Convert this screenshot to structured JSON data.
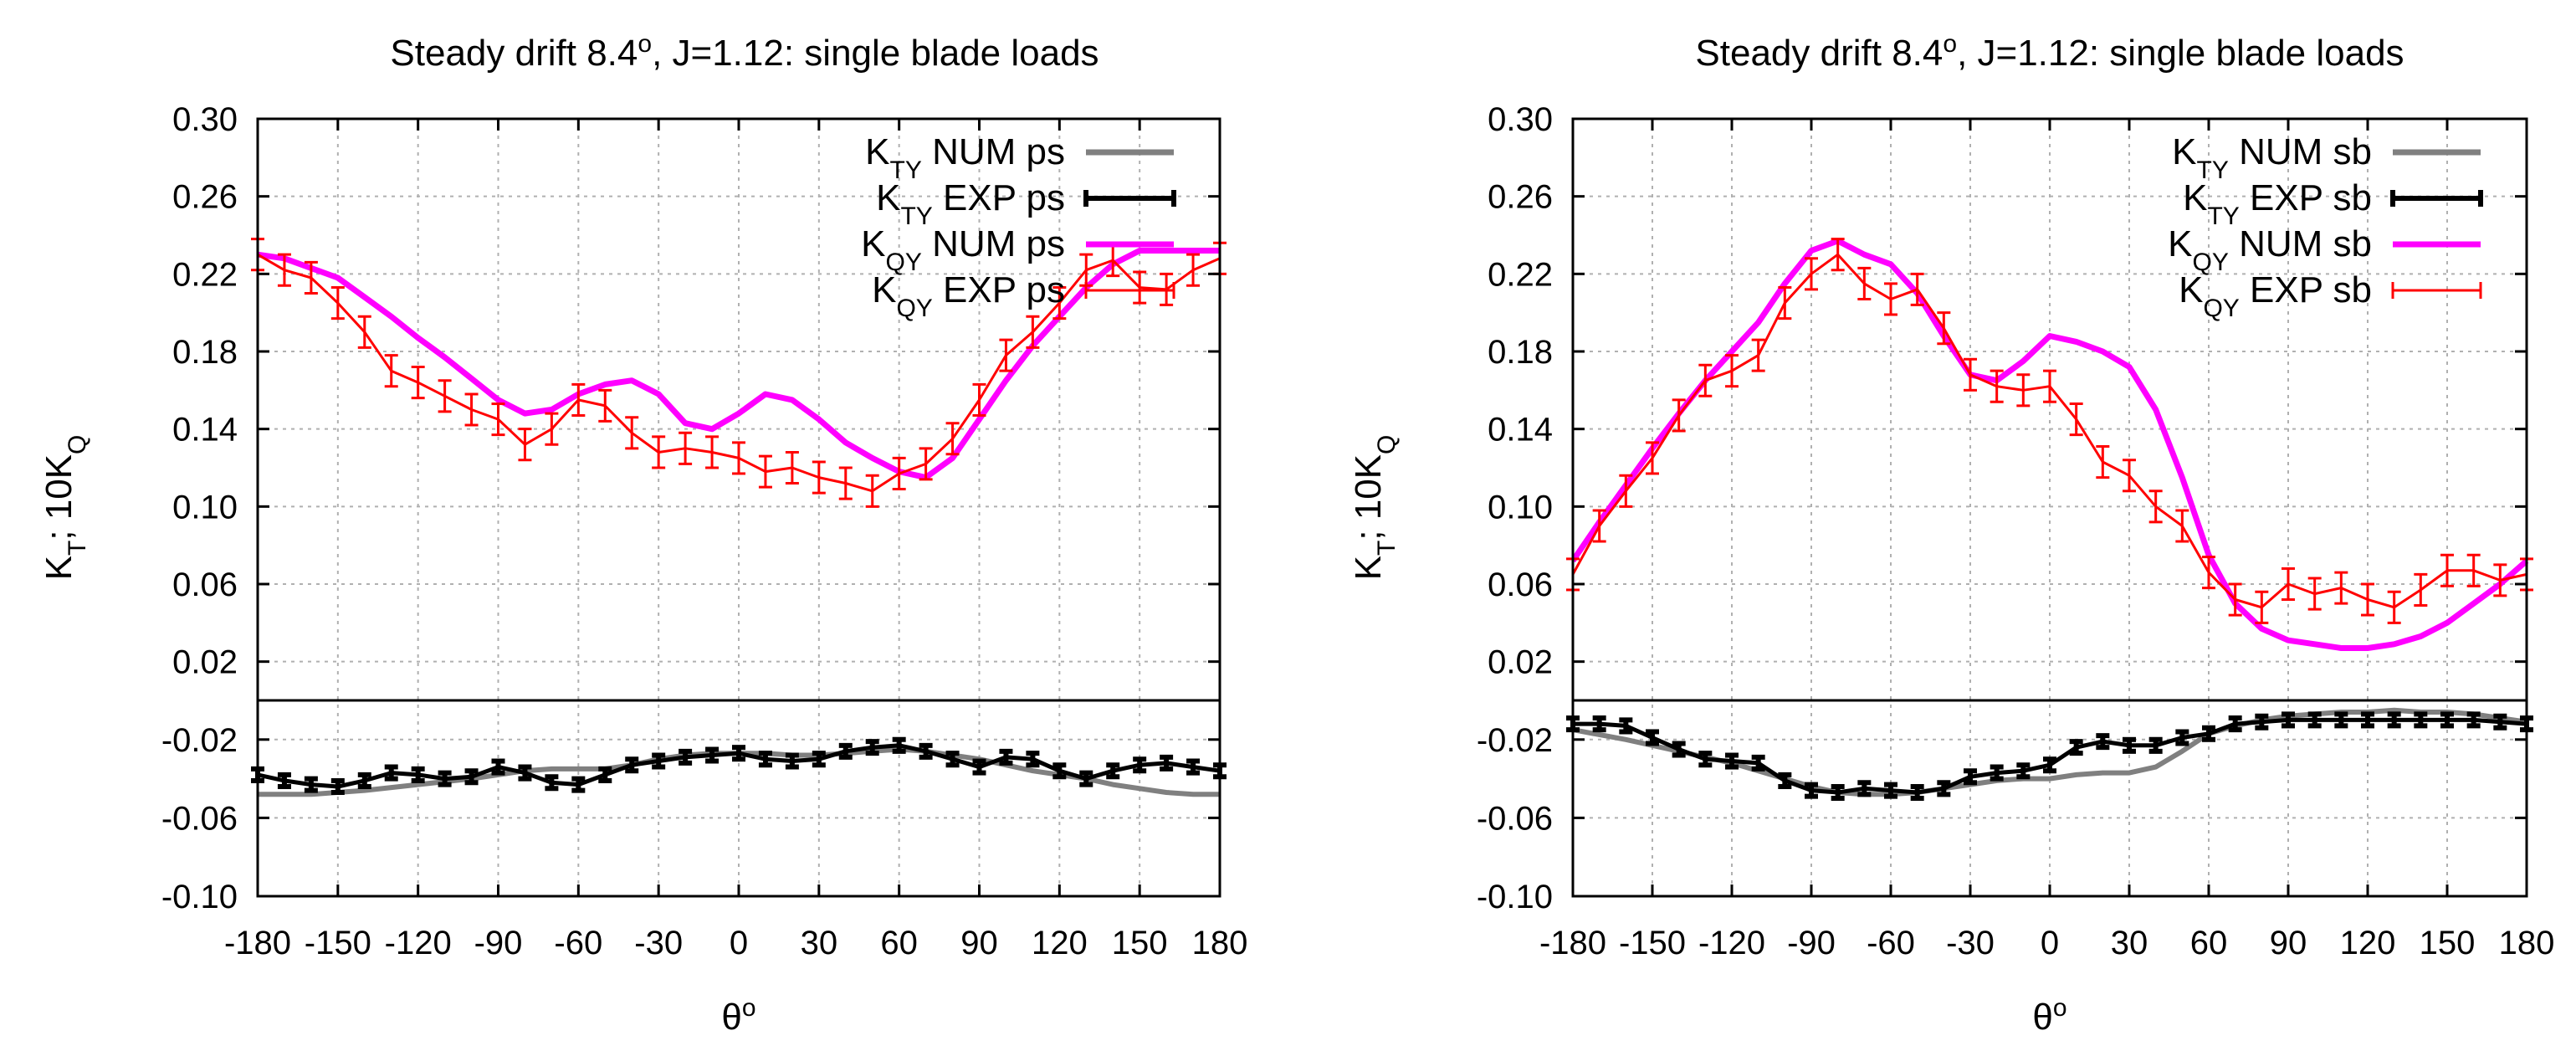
{
  "chart_data": [
    {
      "type": "line",
      "title_main": "Steady drift 8.4",
      "title_sup": "o",
      "title_rest": ", J=1.12: single blade loads",
      "ylabel": {
        "a": "K",
        "a_sub": "T",
        "b": "; 10K",
        "b_sub": "Q"
      },
      "xlabel": {
        "main": "θ",
        "sup": "o"
      },
      "xlim": [
        -180,
        180
      ],
      "ylim_upper": [
        0.0,
        0.3
      ],
      "ylim_lower": [
        -0.1,
        0.0
      ],
      "xticks": [
        -180,
        -150,
        -120,
        -90,
        -60,
        -30,
        0,
        30,
        60,
        90,
        120,
        150,
        180
      ],
      "xtick_labels": [
        "-180",
        "-150",
        "-120",
        "-90",
        "-60",
        "-30",
        "0",
        "30",
        "60",
        "90",
        "120",
        "150",
        "180"
      ],
      "yticks_upper": [
        0.02,
        0.06,
        0.1,
        0.14,
        0.18,
        0.22,
        0.26,
        0.3
      ],
      "ytick_labels_upper": [
        "0.02",
        "0.06",
        "0.10",
        "0.14",
        "0.18",
        "0.22",
        "0.26",
        "0.30"
      ],
      "yticks_lower": [
        -0.1,
        -0.06,
        -0.02
      ],
      "ytick_labels_lower": [
        "-0.10",
        "-0.06",
        "-0.02"
      ],
      "grid": true,
      "legend_position": "top-right",
      "series": [
        {
          "label": {
            "k": "K",
            "sub": "TY",
            "text": " NUM ps"
          },
          "color": "#808080",
          "panel": "lower",
          "kind": "line",
          "x": [
            -180,
            -160,
            -140,
            -120,
            -100,
            -90,
            -80,
            -70,
            -60,
            -50,
            -40,
            -30,
            -20,
            -10,
            0,
            10,
            20,
            30,
            40,
            50,
            60,
            70,
            80,
            90,
            100,
            110,
            120,
            130,
            140,
            150,
            160,
            170,
            180
          ],
          "y": [
            -0.048,
            -0.048,
            -0.046,
            -0.043,
            -0.04,
            -0.038,
            -0.036,
            -0.035,
            -0.035,
            -0.035,
            -0.033,
            -0.03,
            -0.028,
            -0.027,
            -0.027,
            -0.027,
            -0.028,
            -0.028,
            -0.027,
            -0.026,
            -0.025,
            -0.026,
            -0.028,
            -0.03,
            -0.033,
            -0.036,
            -0.038,
            -0.04,
            -0.043,
            -0.045,
            -0.047,
            -0.048,
            -0.048
          ]
        },
        {
          "label": {
            "k": "K",
            "sub": "TY",
            "text": " EXP ps"
          },
          "color": "#000000",
          "panel": "lower",
          "kind": "err",
          "x": [
            -180,
            -170,
            -160,
            -150,
            -140,
            -130,
            -120,
            -110,
            -100,
            -90,
            -80,
            -70,
            -60,
            -50,
            -40,
            -30,
            -20,
            -10,
            0,
            10,
            20,
            30,
            40,
            50,
            60,
            70,
            80,
            90,
            100,
            110,
            120,
            130,
            140,
            150,
            160,
            170,
            180
          ],
          "y": [
            -0.038,
            -0.041,
            -0.043,
            -0.044,
            -0.041,
            -0.037,
            -0.038,
            -0.04,
            -0.039,
            -0.034,
            -0.037,
            -0.042,
            -0.043,
            -0.038,
            -0.033,
            -0.031,
            -0.029,
            -0.028,
            -0.027,
            -0.03,
            -0.031,
            -0.03,
            -0.026,
            -0.024,
            -0.023,
            -0.026,
            -0.03,
            -0.034,
            -0.029,
            -0.03,
            -0.036,
            -0.04,
            -0.036,
            -0.033,
            -0.032,
            -0.034,
            -0.036
          ],
          "err": 0.003
        },
        {
          "label": {
            "k": "K",
            "sub": "QY",
            "text": " NUM ps"
          },
          "color": "#ff00ff",
          "panel": "upper",
          "kind": "line",
          "x": [
            -180,
            -170,
            -160,
            -150,
            -140,
            -130,
            -120,
            -110,
            -100,
            -90,
            -80,
            -70,
            -60,
            -50,
            -40,
            -30,
            -20,
            -10,
            0,
            10,
            20,
            30,
            40,
            50,
            60,
            70,
            80,
            90,
            100,
            110,
            120,
            130,
            140,
            150,
            160,
            170,
            180
          ],
          "y": [
            0.23,
            0.228,
            0.223,
            0.218,
            0.208,
            0.198,
            0.187,
            0.177,
            0.166,
            0.155,
            0.148,
            0.15,
            0.158,
            0.163,
            0.165,
            0.158,
            0.143,
            0.14,
            0.148,
            0.158,
            0.155,
            0.145,
            0.133,
            0.125,
            0.118,
            0.115,
            0.125,
            0.145,
            0.165,
            0.183,
            0.198,
            0.213,
            0.225,
            0.232,
            0.232,
            0.232,
            0.232
          ]
        },
        {
          "label": {
            "k": "K",
            "sub": "QY",
            "text": " EXP ps"
          },
          "color": "#ff0000",
          "panel": "upper",
          "kind": "err",
          "x": [
            -180,
            -170,
            -160,
            -150,
            -140,
            -130,
            -120,
            -110,
            -100,
            -90,
            -80,
            -70,
            -60,
            -50,
            -40,
            -30,
            -20,
            -10,
            0,
            10,
            20,
            30,
            40,
            50,
            60,
            70,
            80,
            90,
            100,
            110,
            120,
            130,
            140,
            150,
            160,
            170,
            180
          ],
          "y": [
            0.23,
            0.222,
            0.218,
            0.205,
            0.19,
            0.17,
            0.164,
            0.157,
            0.15,
            0.145,
            0.132,
            0.14,
            0.155,
            0.152,
            0.138,
            0.128,
            0.13,
            0.128,
            0.125,
            0.118,
            0.12,
            0.115,
            0.112,
            0.108,
            0.117,
            0.122,
            0.135,
            0.155,
            0.178,
            0.19,
            0.205,
            0.222,
            0.227,
            0.213,
            0.212,
            0.222,
            0.228
          ],
          "err": 0.008
        }
      ]
    },
    {
      "type": "line",
      "title_main": "Steady drift 8.4",
      "title_sup": "o",
      "title_rest": ", J=1.12: single blade loads",
      "ylabel": {
        "a": "K",
        "a_sub": "T",
        "b": "; 10K",
        "b_sub": "Q"
      },
      "xlabel": {
        "main": "θ",
        "sup": "o"
      },
      "xlim": [
        -180,
        180
      ],
      "ylim_upper": [
        0.0,
        0.3
      ],
      "ylim_lower": [
        -0.1,
        0.0
      ],
      "xticks": [
        -180,
        -150,
        -120,
        -90,
        -60,
        -30,
        0,
        30,
        60,
        90,
        120,
        150,
        180
      ],
      "xtick_labels": [
        "-180",
        "-150",
        "-120",
        "-90",
        "-60",
        "-30",
        "0",
        "30",
        "60",
        "90",
        "120",
        "150",
        "180"
      ],
      "yticks_upper": [
        0.02,
        0.06,
        0.1,
        0.14,
        0.18,
        0.22,
        0.26,
        0.3
      ],
      "ytick_labels_upper": [
        "0.02",
        "0.06",
        "0.10",
        "0.14",
        "0.18",
        "0.22",
        "0.26",
        "0.30"
      ],
      "yticks_lower": [
        -0.1,
        -0.06,
        -0.02
      ],
      "ytick_labels_lower": [
        "-0.10",
        "-0.06",
        "-0.02"
      ],
      "grid": true,
      "legend_position": "top-right",
      "series": [
        {
          "label": {
            "k": "K",
            "sub": "TY",
            "text": " NUM sb"
          },
          "color": "#808080",
          "panel": "lower",
          "kind": "line",
          "x": [
            -180,
            -160,
            -140,
            -120,
            -100,
            -90,
            -80,
            -70,
            -60,
            -50,
            -40,
            -30,
            -20,
            -10,
            0,
            10,
            20,
            30,
            40,
            50,
            60,
            70,
            80,
            90,
            100,
            110,
            120,
            130,
            140,
            150,
            160,
            170,
            180
          ],
          "y": [
            -0.015,
            -0.02,
            -0.026,
            -0.032,
            -0.04,
            -0.044,
            -0.047,
            -0.048,
            -0.048,
            -0.047,
            -0.045,
            -0.043,
            -0.041,
            -0.04,
            -0.04,
            -0.038,
            -0.037,
            -0.037,
            -0.034,
            -0.026,
            -0.017,
            -0.013,
            -0.01,
            -0.008,
            -0.007,
            -0.006,
            -0.006,
            -0.005,
            -0.006,
            -0.006,
            -0.007,
            -0.009,
            -0.011
          ]
        },
        {
          "label": {
            "k": "K",
            "sub": "TY",
            "text": " EXP sb"
          },
          "color": "#000000",
          "panel": "lower",
          "kind": "err",
          "x": [
            -180,
            -170,
            -160,
            -150,
            -140,
            -130,
            -120,
            -110,
            -100,
            -90,
            -80,
            -70,
            -60,
            -50,
            -40,
            -30,
            -20,
            -10,
            0,
            10,
            20,
            30,
            40,
            50,
            60,
            70,
            80,
            90,
            100,
            110,
            120,
            130,
            140,
            150,
            160,
            170,
            180
          ],
          "y": [
            -0.012,
            -0.012,
            -0.013,
            -0.019,
            -0.025,
            -0.03,
            -0.031,
            -0.032,
            -0.041,
            -0.046,
            -0.047,
            -0.045,
            -0.046,
            -0.047,
            -0.045,
            -0.039,
            -0.037,
            -0.036,
            -0.033,
            -0.024,
            -0.021,
            -0.023,
            -0.023,
            -0.019,
            -0.017,
            -0.012,
            -0.011,
            -0.01,
            -0.01,
            -0.01,
            -0.01,
            -0.01,
            -0.01,
            -0.01,
            -0.01,
            -0.011,
            -0.012
          ],
          "err": 0.003
        },
        {
          "label": {
            "k": "K",
            "sub": "QY",
            "text": " NUM sb"
          },
          "color": "#ff00ff",
          "panel": "upper",
          "kind": "line",
          "x": [
            -180,
            -170,
            -160,
            -150,
            -140,
            -130,
            -120,
            -110,
            -100,
            -90,
            -80,
            -70,
            -60,
            -50,
            -40,
            -30,
            -20,
            -10,
            0,
            10,
            20,
            30,
            40,
            50,
            60,
            70,
            80,
            90,
            100,
            110,
            120,
            130,
            140,
            150,
            160,
            170,
            180
          ],
          "y": [
            0.072,
            0.092,
            0.111,
            0.13,
            0.148,
            0.165,
            0.18,
            0.195,
            0.215,
            0.232,
            0.237,
            0.23,
            0.225,
            0.21,
            0.188,
            0.168,
            0.165,
            0.175,
            0.188,
            0.185,
            0.18,
            0.172,
            0.15,
            0.115,
            0.075,
            0.05,
            0.037,
            0.031,
            0.029,
            0.027,
            0.027,
            0.029,
            0.033,
            0.04,
            0.05,
            0.06,
            0.072
          ],
          "err": 0
        },
        {
          "label": {
            "k": "K",
            "sub": "QY",
            "text": " EXP sb"
          },
          "color": "#ff0000",
          "panel": "upper",
          "kind": "err",
          "x": [
            -180,
            -170,
            -160,
            -150,
            -140,
            -130,
            -120,
            -110,
            -100,
            -90,
            -80,
            -70,
            -60,
            -50,
            -40,
            -30,
            -20,
            -10,
            0,
            10,
            20,
            30,
            40,
            50,
            60,
            70,
            80,
            90,
            100,
            110,
            120,
            130,
            140,
            150,
            160,
            170,
            180
          ],
          "y": [
            0.065,
            0.09,
            0.108,
            0.125,
            0.147,
            0.165,
            0.17,
            0.178,
            0.205,
            0.22,
            0.23,
            0.215,
            0.207,
            0.212,
            0.192,
            0.168,
            0.162,
            0.16,
            0.162,
            0.145,
            0.123,
            0.116,
            0.1,
            0.09,
            0.066,
            0.052,
            0.048,
            0.06,
            0.055,
            0.058,
            0.052,
            0.048,
            0.057,
            0.067,
            0.067,
            0.062,
            0.065
          ],
          "err": 0.008
        }
      ]
    }
  ]
}
